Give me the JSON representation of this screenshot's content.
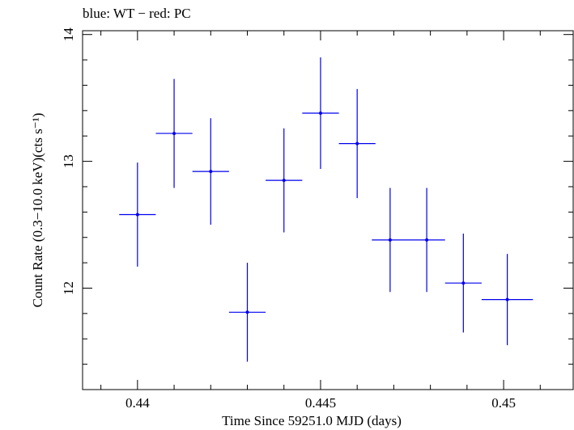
{
  "chart_data": {
    "type": "scatter",
    "title": "blue: WT − red: PC",
    "xlabel": "Time Since 59251.0 MJD (days)",
    "ylabel": "Count Rate (0.3−10.0 keV)(cts s⁻¹)",
    "xlim": [
      0.4385,
      0.4519
    ],
    "ylim": [
      11.2,
      14.03
    ],
    "x_ticks": [
      0.44,
      0.445,
      0.45
    ],
    "x_tick_labels": [
      "0.44",
      "0.445",
      "0.45"
    ],
    "y_ticks": [
      12,
      13,
      14
    ],
    "y_tick_labels": [
      "12",
      "13",
      "14"
    ],
    "grid": false,
    "series": [
      {
        "name": "WT",
        "color": "#0000ee",
        "points": [
          {
            "x": 0.44,
            "xerr": 0.0005,
            "y": 12.58,
            "yerr": 0.41
          },
          {
            "x": 0.441,
            "xerr": 0.0005,
            "y": 13.22,
            "yerr": 0.43
          },
          {
            "x": 0.442,
            "xerr": 0.0005,
            "y": 12.92,
            "yerr": 0.42
          },
          {
            "x": 0.443,
            "xerr": 0.0005,
            "y": 11.81,
            "yerr": 0.39
          },
          {
            "x": 0.444,
            "xerr": 0.0005,
            "y": 12.85,
            "yerr": 0.41
          },
          {
            "x": 0.445,
            "xerr": 0.0005,
            "y": 13.38,
            "yerr": 0.44
          },
          {
            "x": 0.446,
            "xerr": 0.0005,
            "y": 13.14,
            "yerr": 0.43
          },
          {
            "x": 0.4469,
            "xerr": 0.0005,
            "y": 12.38,
            "yerr": 0.41
          },
          {
            "x": 0.4479,
            "xerr": 0.0005,
            "y": 12.38,
            "yerr": 0.41
          },
          {
            "x": 0.4489,
            "xerr": 0.0005,
            "y": 12.04,
            "yerr": 0.39
          },
          {
            "x": 0.4501,
            "xerr": 0.0007,
            "y": 11.91,
            "yerr": 0.36
          }
        ]
      }
    ]
  }
}
